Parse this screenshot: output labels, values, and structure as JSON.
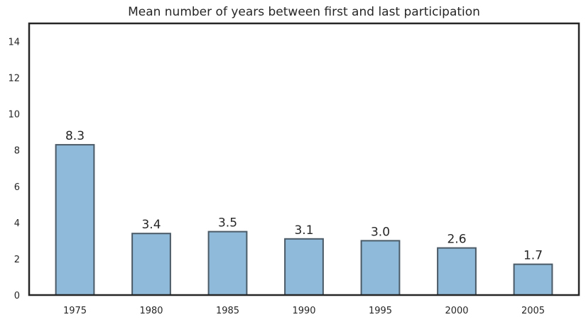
{
  "chart_data": {
    "type": "bar",
    "title": "Mean number of years between first and last participation",
    "xlabel": "",
    "ylabel": "",
    "categories": [
      "1975",
      "1980",
      "1985",
      "1990",
      "1995",
      "2000",
      "2005"
    ],
    "values": [
      8.3,
      3.4,
      3.5,
      3.1,
      3.0,
      2.6,
      1.7
    ],
    "data_labels": [
      "8.3",
      "3.4",
      "3.5",
      "3.1",
      "3.0",
      "2.6",
      "1.7"
    ],
    "ylim": [
      0,
      15
    ],
    "yticks": [
      0,
      2,
      4,
      6,
      8,
      10,
      12,
      14
    ],
    "grid": false,
    "legend": "none",
    "colors": {
      "bar_fill": "#8fbad9",
      "bar_edge": "#4a5a66",
      "axes": "#262626"
    }
  }
}
